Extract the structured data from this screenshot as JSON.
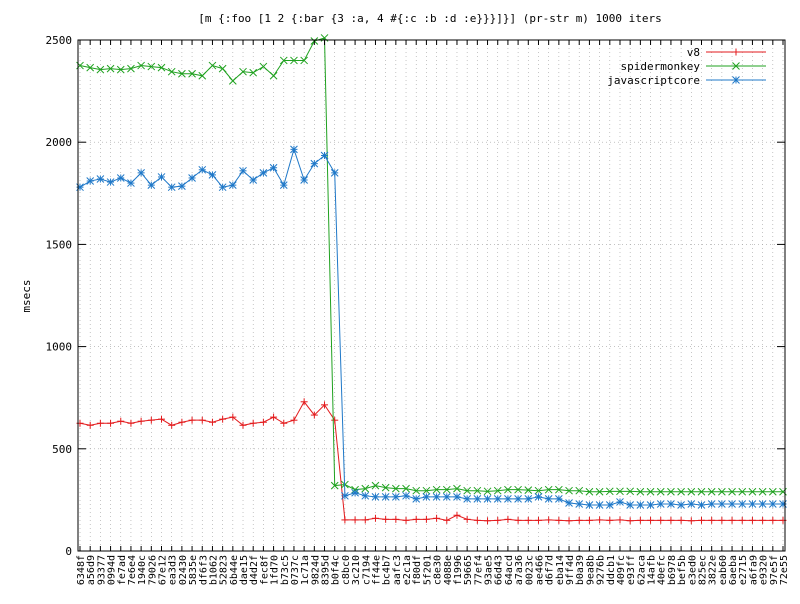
{
  "chart_data": {
    "type": "line",
    "title": "[m {:foo [1 2 {:bar {3 :a, 4 #{:c :b :d :e}}}]}] (pr-str m) 1000 iters",
    "xlabel": "",
    "ylabel": "msecs",
    "ylim": [
      0,
      2500
    ],
    "yticks": [
      0,
      500,
      1000,
      1500,
      2000,
      2500
    ],
    "grid": true,
    "legend_position": "top-right",
    "categories": [
      "6348f",
      "a56d9",
      "93377",
      "0994d",
      "fe7ad",
      "7e6e4",
      "1940c",
      "79026",
      "67e12",
      "ea3d3",
      "02430",
      "5835e",
      "df6f3",
      "b1062",
      "52823",
      "6b44e",
      "dae15",
      "d4d2f",
      "fec8f",
      "1fd70",
      "b73c5",
      "0737c",
      "1c71a",
      "9824d",
      "8395d",
      "b0f4c",
      "c8bc0",
      "3c210",
      "c7194",
      "ff44e",
      "bc4b7",
      "aafc3",
      "e2c1a",
      "f80df",
      "5f201",
      "c8e30",
      "4088e",
      "f1996",
      "59665",
      "77ef4",
      "93ae5",
      "66d43",
      "64acd",
      "a7a36",
      "0023c",
      "ae466",
      "d6f7d",
      "eba14",
      "9ff4d",
      "b0a39",
      "9ea8b",
      "9276b",
      "ddcb1",
      "409fc",
      "e93ff",
      "62aca",
      "14afb",
      "40efc",
      "b6978",
      "bef5b",
      "e3ed0",
      "825ec",
      "3822e",
      "eab60",
      "6aeba",
      "e2715",
      "a6fa9",
      "e9320",
      "97e5f",
      "72e55"
    ],
    "series": [
      {
        "name": "v8",
        "color": "#e31a1c",
        "marker": "plus",
        "values": [
          625,
          615,
          625,
          625,
          635,
          625,
          635,
          640,
          645,
          615,
          630,
          640,
          640,
          630,
          645,
          655,
          615,
          625,
          630,
          655,
          625,
          640,
          730,
          665,
          715,
          640,
          152,
          152,
          152,
          160,
          155,
          155,
          150,
          155,
          155,
          160,
          150,
          175,
          155,
          150,
          148,
          150,
          155,
          150,
          150,
          150,
          152,
          150,
          148,
          150,
          150,
          152,
          150,
          152,
          148,
          150,
          150,
          150,
          150,
          150,
          148,
          150,
          150,
          150,
          150,
          150,
          150,
          150,
          150,
          150
        ]
      },
      {
        "name": "spidermonkey",
        "color": "#1fa11f",
        "marker": "x",
        "values": [
          2375,
          2365,
          2355,
          2360,
          2355,
          2360,
          2375,
          2370,
          2365,
          2345,
          2335,
          2335,
          2325,
          2375,
          2360,
          2300,
          2345,
          2340,
          2370,
          2325,
          2400,
          2400,
          2400,
          2495,
          2510,
          320,
          325,
          300,
          305,
          320,
          310,
          305,
          305,
          295,
          295,
          300,
          300,
          305,
          295,
          295,
          292,
          295,
          300,
          300,
          298,
          295,
          300,
          300,
          295,
          295,
          290,
          290,
          292,
          292,
          292,
          290,
          290,
          290,
          290,
          290,
          290,
          290,
          290,
          290,
          290,
          290,
          290,
          290,
          290,
          290
        ]
      },
      {
        "name": "javascriptcore",
        "color": "#1f78c8",
        "marker": "star",
        "values": [
          1780,
          1810,
          1820,
          1805,
          1825,
          1800,
          1850,
          1790,
          1830,
          1780,
          1785,
          1825,
          1865,
          1840,
          1780,
          1790,
          1860,
          1815,
          1850,
          1875,
          1790,
          1965,
          1815,
          1895,
          1935,
          1850,
          270,
          285,
          270,
          265,
          265,
          265,
          270,
          255,
          265,
          265,
          265,
          265,
          255,
          255,
          255,
          255,
          255,
          255,
          255,
          265,
          255,
          255,
          235,
          230,
          225,
          225,
          225,
          240,
          225,
          225,
          225,
          230,
          230,
          225,
          230,
          225,
          230,
          230,
          230,
          230,
          230,
          230,
          230,
          230
        ]
      }
    ]
  }
}
